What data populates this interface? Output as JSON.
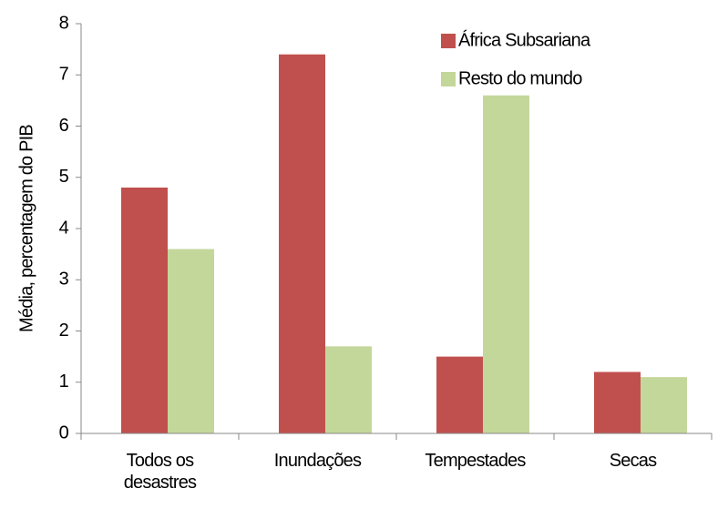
{
  "chart_data": {
    "type": "bar",
    "y_label": "Média, percentagem do PIB",
    "categories": [
      "Todos os desastres",
      "Inundações",
      "Tempestades",
      "Secas"
    ],
    "series": [
      {
        "name": "África Subsariana",
        "color": "#c0504d",
        "values": [
          4.8,
          7.4,
          1.5,
          1.2
        ]
      },
      {
        "name": "Resto do mundo",
        "color": "#c4d79b",
        "values": [
          3.6,
          1.7,
          6.6,
          1.1
        ]
      }
    ],
    "ylim": [
      0,
      8
    ],
    "yticks": [
      0,
      1,
      2,
      3,
      4,
      5,
      6,
      7,
      8
    ],
    "grid": false,
    "legend": "top-right"
  }
}
